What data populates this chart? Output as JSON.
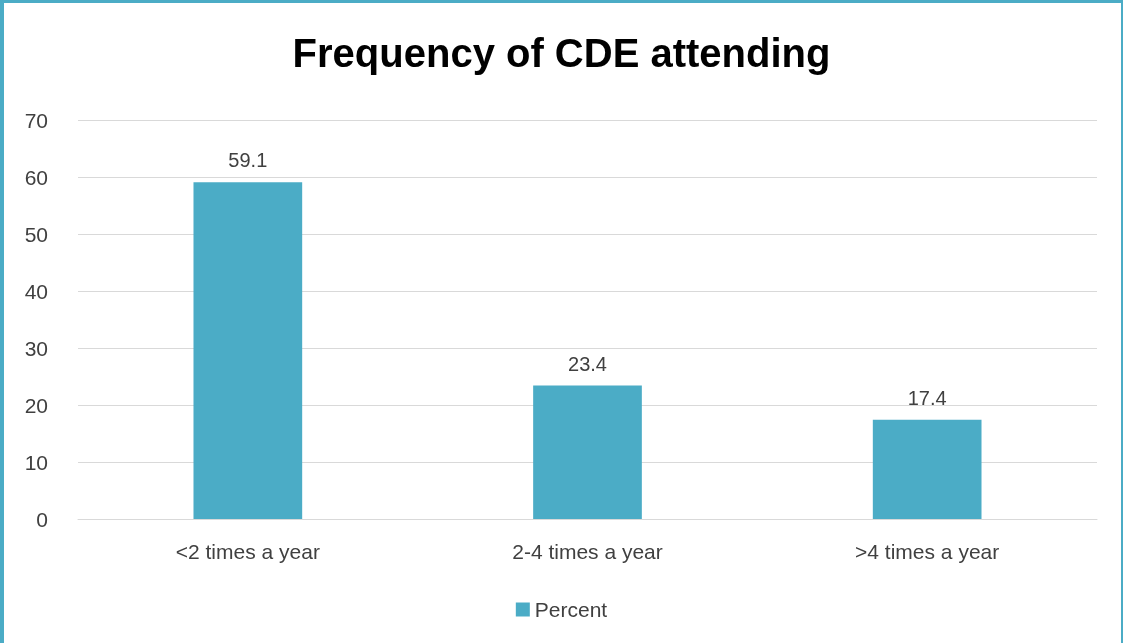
{
  "chart_data": {
    "type": "bar",
    "title": "Frequency of CDE attending",
    "categories": [
      "<2 times a year",
      "2-4 times a year",
      ">4 times a year"
    ],
    "series": [
      {
        "name": "Percent",
        "color": "#4bacc6",
        "values": [
          59.1,
          23.4,
          17.4
        ]
      }
    ],
    "ylim": [
      0,
      70
    ],
    "yticks": [
      0,
      10,
      20,
      30,
      40,
      50,
      60,
      70
    ],
    "grid": "y",
    "legend": "bottom",
    "data_labels": true
  }
}
